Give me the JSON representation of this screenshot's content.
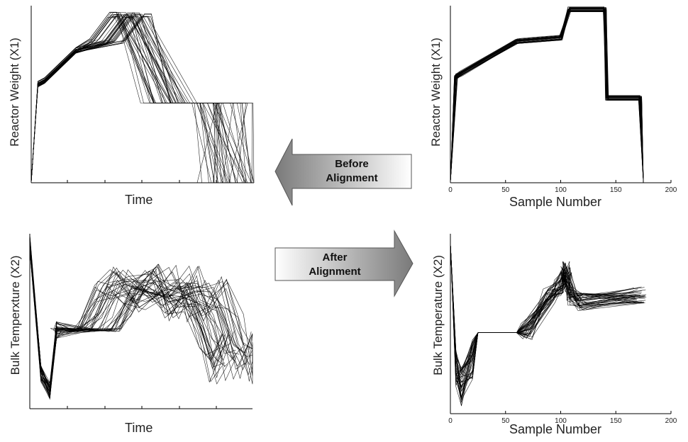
{
  "arrows": {
    "before": {
      "line1": "Before",
      "line2": "Alignment"
    },
    "after": {
      "line1": "After",
      "line2": "Alignment"
    }
  },
  "chart_data": [
    {
      "id": "tl",
      "type": "line",
      "title": "",
      "xlabel": "Time",
      "ylabel": "Reactor Weight (X1)",
      "xticks": [],
      "xlim": [
        0,
        100
      ],
      "ylim": [
        0,
        100
      ],
      "grid": false,
      "trajectory_count": 40,
      "representative_series": {
        "x": [
          0,
          3,
          6,
          20,
          33,
          42,
          45,
          52,
          62,
          76,
          80,
          100
        ],
        "y": [
          0,
          56,
          58,
          75,
          80,
          95,
          95,
          45,
          45,
          45,
          0,
          0
        ]
      }
    },
    {
      "id": "tr",
      "type": "line",
      "title": "",
      "xlabel": "Sample Number",
      "ylabel": "Reactor Weight (X1)",
      "xticks": [
        "0",
        "50",
        "100",
        "150",
        "200"
      ],
      "xlim": [
        0,
        200
      ],
      "ylim": [
        0,
        100
      ],
      "grid": false,
      "trajectory_count": 40,
      "representative_series": {
        "x": [
          0,
          5,
          10,
          60,
          100,
          108,
          140,
          142,
          172,
          175
        ],
        "y": [
          0,
          60,
          62,
          80,
          82,
          98,
          98,
          48,
          48,
          0
        ]
      }
    },
    {
      "id": "bl",
      "type": "line",
      "title": "",
      "xlabel": "Time",
      "ylabel": "Bulk Temperxture (X2)",
      "xticks": [],
      "xlim": [
        0,
        100
      ],
      "ylim": [
        0,
        100
      ],
      "grid": false,
      "trajectory_count": 40,
      "representative_series": {
        "x": [
          0,
          5,
          9,
          12,
          20,
          30,
          38,
          45,
          55,
          65,
          70,
          78,
          85,
          90,
          95
        ],
        "y": [
          95,
          20,
          10,
          45,
          45,
          45,
          62,
          70,
          65,
          72,
          60,
          65,
          45,
          25,
          35
        ]
      }
    },
    {
      "id": "br",
      "type": "line",
      "title": "",
      "xlabel": "Sample Number",
      "ylabel": "Bulk Temperature (X2)",
      "xticks": [
        "0",
        "50",
        "100",
        "150",
        "200"
      ],
      "xlim": [
        0,
        200
      ],
      "ylim": [
        0,
        100
      ],
      "grid": false,
      "trajectory_count": 40,
      "representative_series": {
        "x": [
          0,
          5,
          10,
          20,
          25,
          30,
          60,
          70,
          90,
          100,
          105,
          110,
          120,
          172
        ],
        "y": [
          95,
          25,
          15,
          30,
          45,
          45,
          45,
          46,
          65,
          70,
          80,
          65,
          62,
          66
        ]
      }
    }
  ]
}
